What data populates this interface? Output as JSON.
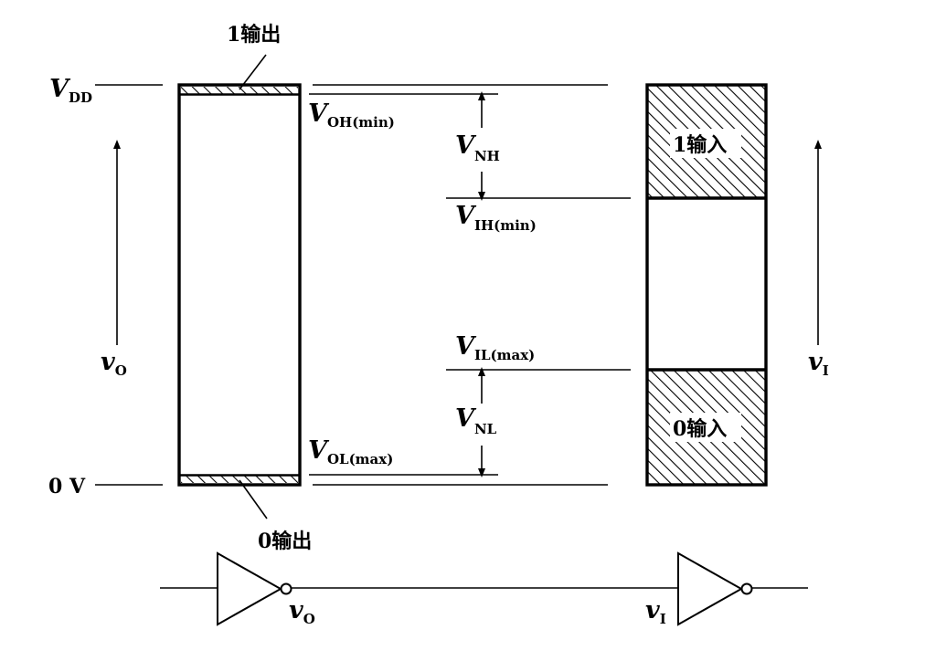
{
  "labels": {
    "vdd": {
      "main": "V",
      "sub": "DD"
    },
    "zero_volt": "0 V",
    "v_oh_min": {
      "main": "V",
      "sub": "OH(min)"
    },
    "v_ol_max": {
      "main": "V",
      "sub": "OL(max)"
    },
    "v_ih_min": {
      "main": "V",
      "sub": "IH(min)"
    },
    "v_il_max": {
      "main": "V",
      "sub": "IL(max)"
    },
    "v_nh": {
      "main": "V",
      "sub": "NH"
    },
    "v_nl": {
      "main": "V",
      "sub": "NL"
    },
    "vo_axis": {
      "main": "v",
      "sub": "O"
    },
    "vi_axis": {
      "main": "v",
      "sub": "I"
    },
    "vo_gate": {
      "main": "v",
      "sub": "O"
    },
    "vi_gate": {
      "main": "v",
      "sub": "I"
    },
    "one_output": "1输出",
    "zero_output": "0输出",
    "one_input": "1输入",
    "zero_input": "0输入"
  }
}
